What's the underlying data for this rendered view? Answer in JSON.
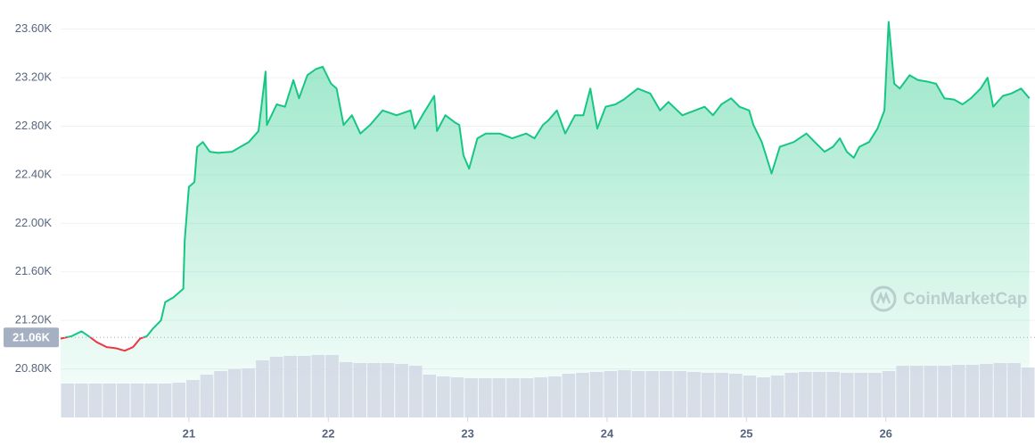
{
  "chart_data": {
    "type": "line",
    "watermark": "CoinMarketCap",
    "xlim": [
      20.08,
      27.07
    ],
    "xticks": [
      21,
      22,
      23,
      24,
      25,
      26
    ],
    "ylim": [
      20400,
      23840
    ],
    "yticks": [
      {
        "value": 20800,
        "label": "20.80K"
      },
      {
        "value": 21200,
        "label": "21.20K"
      },
      {
        "value": 21600,
        "label": "21.60K"
      },
      {
        "value": 22000,
        "label": "22.00K"
      },
      {
        "value": 22400,
        "label": "22.40K"
      },
      {
        "value": 22800,
        "label": "22.80K"
      },
      {
        "value": 23200,
        "label": "23.20K"
      },
      {
        "value": 23600,
        "label": "23.60K"
      }
    ],
    "grid": true,
    "baseline": {
      "value": 21060,
      "label": "21.06K"
    },
    "up_color": "#16c784",
    "down_color": "#ea3943",
    "x": [
      20.08,
      20.16,
      20.23,
      20.28,
      20.34,
      20.41,
      20.48,
      20.54,
      20.6,
      20.65,
      20.7,
      20.74,
      20.8,
      20.83,
      20.89,
      20.96,
      20.97,
      21.0,
      21.04,
      21.06,
      21.1,
      21.15,
      21.21,
      21.31,
      21.37,
      21.43,
      21.5,
      21.55,
      21.56,
      21.63,
      21.69,
      21.75,
      21.79,
      21.85,
      21.91,
      21.96,
      22.02,
      22.06,
      22.11,
      22.17,
      22.23,
      22.3,
      22.39,
      22.49,
      22.59,
      22.62,
      22.68,
      22.76,
      22.78,
      22.84,
      22.91,
      22.94,
      22.97,
      23.01,
      23.07,
      23.13,
      23.23,
      23.32,
      23.42,
      23.48,
      23.54,
      23.58,
      23.64,
      23.7,
      23.77,
      23.83,
      23.88,
      23.93,
      23.99,
      24.06,
      24.12,
      24.22,
      24.31,
      24.38,
      24.44,
      24.54,
      24.63,
      24.7,
      24.76,
      24.82,
      24.89,
      24.95,
      25.02,
      25.05,
      25.11,
      25.14,
      25.18,
      25.24,
      25.34,
      25.43,
      25.49,
      25.56,
      25.62,
      25.67,
      25.72,
      25.77,
      25.81,
      25.88,
      25.94,
      25.99,
      26.02,
      26.06,
      26.1,
      26.17,
      26.23,
      26.29,
      26.36,
      26.42,
      26.49,
      26.55,
      26.61,
      26.68,
      26.73,
      26.77,
      26.84,
      26.9,
      26.97,
      27.03
    ],
    "values": [
      21050,
      21070,
      21110,
      21070,
      21020,
      20980,
      20970,
      20950,
      20980,
      21050,
      21070,
      21130,
      21200,
      21350,
      21390,
      21460,
      21860,
      22300,
      22340,
      22630,
      22670,
      22590,
      22580,
      22590,
      22630,
      22670,
      22760,
      23250,
      22810,
      22980,
      22960,
      23180,
      23030,
      23220,
      23270,
      23290,
      23150,
      23110,
      22810,
      22890,
      22740,
      22810,
      22930,
      22890,
      22930,
      22780,
      22900,
      23050,
      22760,
      22890,
      22830,
      22810,
      22560,
      22450,
      22700,
      22740,
      22740,
      22700,
      22740,
      22700,
      22810,
      22850,
      22930,
      22740,
      22890,
      22890,
      23110,
      22780,
      22960,
      22980,
      23020,
      23110,
      23070,
      22930,
      23000,
      22890,
      22930,
      22960,
      22890,
      22980,
      23030,
      22960,
      22930,
      22810,
      22670,
      22560,
      22410,
      22630,
      22670,
      22740,
      22670,
      22590,
      22630,
      22700,
      22590,
      22540,
      22630,
      22670,
      22780,
      22930,
      23660,
      23150,
      23110,
      23220,
      23180,
      23170,
      23150,
      23030,
      23020,
      22980,
      23030,
      23110,
      23200,
      22960,
      23050,
      23070,
      23110,
      23030
    ],
    "volume": {
      "color": "#cfd6e4",
      "values": [
        38,
        38,
        38,
        38,
        38,
        38,
        38,
        38,
        39,
        42,
        48,
        52,
        54,
        55,
        64,
        68,
        69,
        69,
        70,
        70,
        62,
        61,
        61,
        61,
        60,
        58,
        48,
        46,
        45,
        44,
        44,
        44,
        44,
        44,
        45,
        46,
        49,
        50,
        51,
        52,
        53,
        52,
        52,
        52,
        52,
        51,
        50,
        50,
        49,
        47,
        45,
        47,
        50,
        51,
        51,
        51,
        50,
        50,
        50,
        52,
        58,
        58,
        58,
        58,
        59,
        59,
        60,
        61,
        61,
        56
      ]
    }
  }
}
